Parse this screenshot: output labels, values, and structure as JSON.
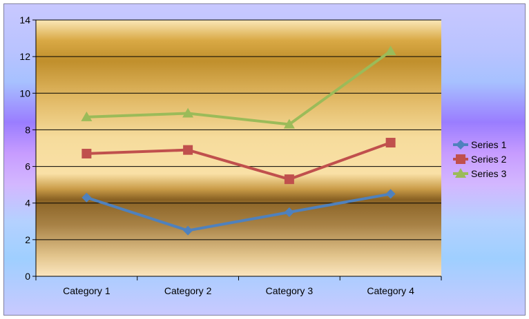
{
  "chart_data": {
    "type": "line",
    "categories": [
      "Category 1",
      "Category 2",
      "Category 3",
      "Category 4"
    ],
    "series": [
      {
        "name": "Series 1",
        "values": [
          4.3,
          2.5,
          3.5,
          4.5
        ],
        "color": "#4f81bd",
        "marker": "diamond"
      },
      {
        "name": "Series 2",
        "values": [
          6.7,
          6.9,
          5.3,
          7.3
        ],
        "color": "#c0504d",
        "marker": "square"
      },
      {
        "name": "Series 3",
        "values": [
          8.7,
          8.9,
          8.3,
          12.3
        ],
        "color": "#9bbb59",
        "marker": "triangle"
      }
    ],
    "ylim": [
      0,
      14
    ],
    "yticks": [
      "0",
      "2",
      "4",
      "6",
      "8",
      "10",
      "12",
      "14"
    ],
    "grid": true,
    "legend_position": "right",
    "title": "",
    "xlabel": "",
    "ylabel": ""
  }
}
